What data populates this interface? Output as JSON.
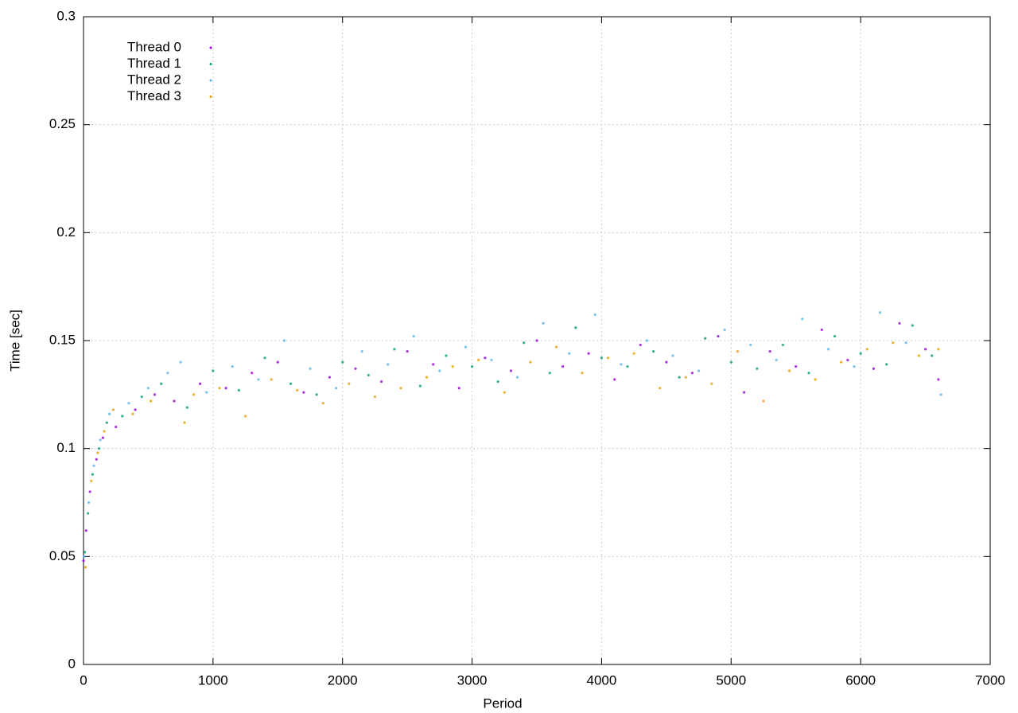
{
  "chart_data": {
    "type": "scatter",
    "x_label": "Period",
    "y_label": "Time [sec]",
    "xlim": [
      0,
      7000
    ],
    "xticks": [
      0,
      1000,
      2000,
      3000,
      4000,
      5000,
      6000,
      7000
    ],
    "ylim": [
      0,
      0.3
    ],
    "yticks": [
      0,
      0.05,
      0.1,
      0.15,
      0.2,
      0.25,
      0.3
    ],
    "grid": true,
    "legend": "top-left",
    "series": [
      {
        "name": "Thread 0",
        "color": "#9400d3",
        "x": [
          0,
          20,
          50,
          100,
          150,
          250,
          400,
          550,
          700,
          900,
          1100,
          1300,
          1500,
          1700,
          1900,
          2100,
          2300,
          2500,
          2700,
          2900,
          3100,
          3300,
          3500,
          3700,
          3900,
          4100,
          4300,
          4500,
          4700,
          4900,
          5100,
          5300,
          5500,
          5700,
          5900,
          6100,
          6300,
          6500,
          6600
        ],
        "values": [
          0.048,
          0.062,
          0.08,
          0.095,
          0.105,
          0.11,
          0.118,
          0.125,
          0.122,
          0.13,
          0.128,
          0.135,
          0.14,
          0.126,
          0.133,
          0.137,
          0.131,
          0.145,
          0.139,
          0.128,
          0.142,
          0.136,
          0.15,
          0.138,
          0.144,
          0.132,
          0.148,
          0.14,
          0.135,
          0.152,
          0.126,
          0.145,
          0.138,
          0.155,
          0.141,
          0.137,
          0.158,
          0.146,
          0.132
        ]
      },
      {
        "name": "Thread 1",
        "color": "#009e73",
        "x": [
          10,
          35,
          70,
          120,
          180,
          300,
          450,
          600,
          800,
          1000,
          1200,
          1400,
          1600,
          1800,
          2000,
          2200,
          2400,
          2600,
          2800,
          3000,
          3200,
          3400,
          3600,
          3800,
          4000,
          4200,
          4400,
          4600,
          4800,
          5000,
          5200,
          5400,
          5600,
          5800,
          6000,
          6200,
          6400,
          6550
        ],
        "values": [
          0.052,
          0.07,
          0.088,
          0.1,
          0.112,
          0.115,
          0.124,
          0.13,
          0.119,
          0.136,
          0.127,
          0.142,
          0.13,
          0.125,
          0.14,
          0.134,
          0.146,
          0.129,
          0.143,
          0.138,
          0.131,
          0.149,
          0.135,
          0.156,
          0.142,
          0.138,
          0.145,
          0.133,
          0.151,
          0.14,
          0.137,
          0.148,
          0.135,
          0.152,
          0.144,
          0.139,
          0.157,
          0.143
        ]
      },
      {
        "name": "Thread 2",
        "color": "#56b4e9",
        "x": [
          5,
          40,
          80,
          130,
          200,
          350,
          500,
          650,
          750,
          950,
          1150,
          1350,
          1550,
          1750,
          1950,
          2150,
          2350,
          2550,
          2750,
          2950,
          3150,
          3350,
          3550,
          3750,
          3950,
          4150,
          4350,
          4550,
          4750,
          4950,
          5150,
          5350,
          5550,
          5750,
          5950,
          6150,
          6350,
          6620
        ],
        "values": [
          0.05,
          0.075,
          0.092,
          0.104,
          0.116,
          0.121,
          0.128,
          0.135,
          0.14,
          0.126,
          0.138,
          0.132,
          0.15,
          0.137,
          0.128,
          0.145,
          0.139,
          0.152,
          0.136,
          0.147,
          0.141,
          0.133,
          0.158,
          0.144,
          0.162,
          0.139,
          0.15,
          0.143,
          0.136,
          0.155,
          0.148,
          0.141,
          0.16,
          0.146,
          0.138,
          0.163,
          0.149,
          0.125
        ]
      },
      {
        "name": "Thread 3",
        "color": "#e69f00",
        "x": [
          15,
          60,
          110,
          160,
          230,
          380,
          520,
          780,
          850,
          1050,
          1250,
          1450,
          1650,
          1850,
          2050,
          2250,
          2450,
          2650,
          2850,
          3050,
          3250,
          3450,
          3650,
          3850,
          4050,
          4250,
          4450,
          4650,
          4850,
          5050,
          5250,
          5450,
          5650,
          5850,
          6050,
          6250,
          6450,
          6600
        ],
        "values": [
          0.045,
          0.085,
          0.098,
          0.108,
          0.118,
          0.116,
          0.122,
          0.112,
          0.125,
          0.128,
          0.115,
          0.132,
          0.127,
          0.121,
          0.13,
          0.124,
          0.128,
          0.133,
          0.138,
          0.141,
          0.126,
          0.14,
          0.147,
          0.135,
          0.142,
          0.144,
          0.128,
          0.133,
          0.13,
          0.145,
          0.122,
          0.136,
          0.132,
          0.14,
          0.146,
          0.149,
          0.143,
          0.146
        ]
      }
    ]
  }
}
